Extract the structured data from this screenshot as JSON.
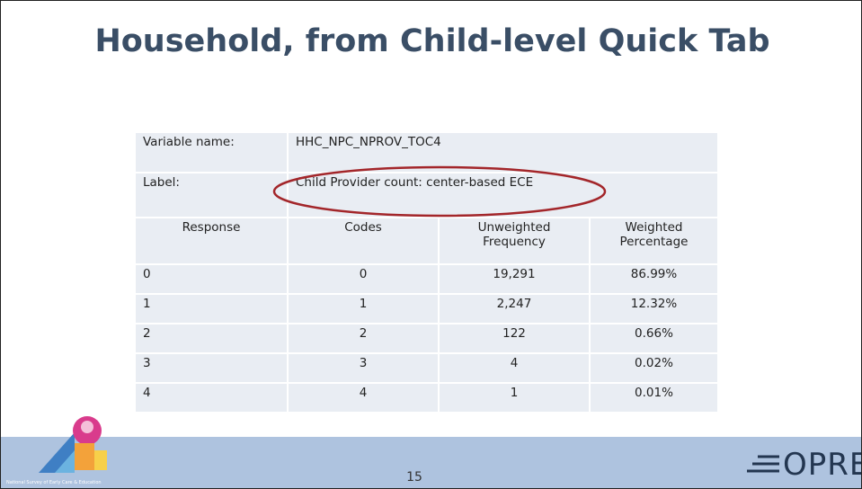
{
  "title": "Household, from Child-level Quick Tab",
  "table": {
    "variable": [
      "Variable name:",
      "HHC_NPC_NPROV_TOC4"
    ],
    "label": [
      "Label:",
      "Child Provider count: center-based ECE"
    ],
    "header": [
      "Response",
      "Codes",
      "Unweighted Frequency",
      "Weighted Percentage"
    ],
    "rows": [
      [
        "0",
        "0",
        "19,291",
        "86.99%"
      ],
      [
        "1",
        "1",
        "2,247",
        "12.32%"
      ],
      [
        "2",
        "2",
        "122",
        "0.66%"
      ],
      [
        "3",
        "3",
        "4",
        "0.02%"
      ],
      [
        "4",
        "4",
        "1",
        "0.01%"
      ]
    ]
  },
  "footer": {
    "logo_text": "National Survey of Early Care & Education",
    "page_number": "15",
    "brand": "OPRE"
  }
}
